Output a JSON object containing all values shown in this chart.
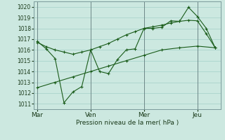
{
  "background_color": "#cce8e0",
  "grid_color": "#aad4cc",
  "line_color": "#1a5c1a",
  "xlabel": "Pression niveau de la mer( hPa )",
  "yticks": [
    1011,
    1012,
    1013,
    1014,
    1015,
    1016,
    1017,
    1018,
    1019,
    1020
  ],
  "ylim": [
    1010.5,
    1020.5
  ],
  "xtick_labels": [
    "Mar",
    "Ven",
    "Mer",
    "Jeu"
  ],
  "xtick_positions": [
    0,
    3,
    6,
    9
  ],
  "xlim": [
    -0.2,
    10.3
  ],
  "vlines": [
    0,
    3,
    6,
    9
  ],
  "series1_x": [
    0,
    0.5,
    1.0,
    1.5,
    2.0,
    2.5,
    3.0,
    3.5,
    4.0,
    4.5,
    5.0,
    5.5,
    6.0,
    6.5,
    7.0,
    7.5,
    8.0,
    8.5,
    9.0,
    9.5,
    10.0
  ],
  "series1_y": [
    1016.8,
    1016.1,
    1015.2,
    1011.1,
    1012.1,
    1012.6,
    1016.0,
    1014.0,
    1013.8,
    1015.1,
    1016.0,
    1016.1,
    1018.0,
    1018.0,
    1018.1,
    1018.7,
    1018.65,
    1019.95,
    1019.1,
    1018.0,
    1016.2
  ],
  "series2_x": [
    0,
    0.5,
    1.0,
    1.5,
    2.0,
    2.5,
    3.0,
    3.5,
    4.0,
    4.5,
    5.0,
    5.5,
    6.0,
    6.5,
    7.0,
    7.5,
    8.0,
    8.5,
    9.0,
    9.5,
    10.0
  ],
  "series2_y": [
    1016.7,
    1016.3,
    1016.0,
    1015.8,
    1015.6,
    1015.8,
    1016.0,
    1016.3,
    1016.6,
    1017.0,
    1017.4,
    1017.7,
    1018.0,
    1018.15,
    1018.3,
    1018.5,
    1018.65,
    1018.75,
    1018.7,
    1017.5,
    1016.2
  ],
  "series3_x": [
    0,
    1,
    2,
    3,
    4,
    5,
    6,
    7,
    8,
    9,
    10
  ],
  "series3_y": [
    1012.5,
    1013.0,
    1013.5,
    1014.0,
    1014.5,
    1015.0,
    1015.5,
    1016.0,
    1016.2,
    1016.35,
    1016.2
  ]
}
